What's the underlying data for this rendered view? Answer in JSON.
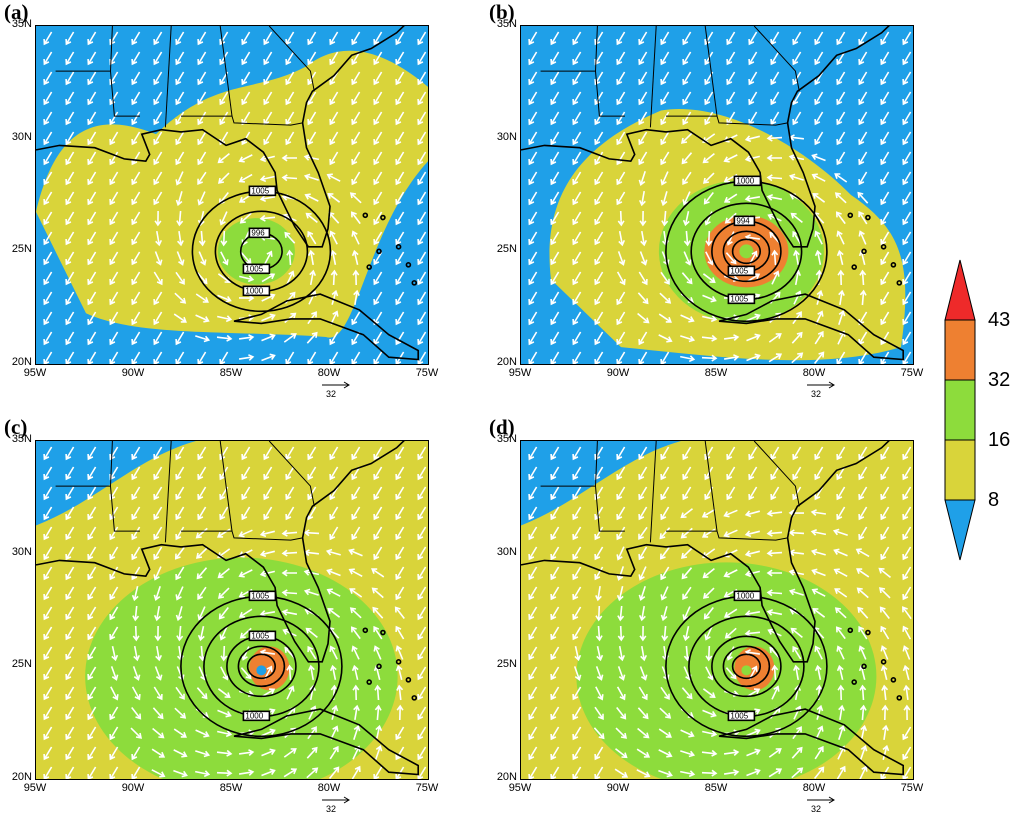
{
  "panels": [
    {
      "id": "a",
      "label": "(a)",
      "intensity": 1
    },
    {
      "id": "b",
      "label": "(b)",
      "intensity": 2
    },
    {
      "id": "c",
      "label": "(c)",
      "intensity": 3
    },
    {
      "id": "d",
      "label": "(d)",
      "intensity": 4
    }
  ],
  "axes": {
    "lat_labels": [
      "35N",
      "30N",
      "25N",
      "20N"
    ],
    "lon_labels": [
      "95W",
      "90W",
      "85W",
      "80W",
      "75W"
    ],
    "lon_range": [
      -95,
      -75
    ],
    "lat_range": [
      20,
      35
    ]
  },
  "reference_vector": {
    "label": "32"
  },
  "colorbar": {
    "levels": [
      "43",
      "32",
      "16",
      "8"
    ],
    "colors": {
      "c8": "#1fa0e8",
      "c16": "#d9d43a",
      "c32": "#8ddc3c",
      "c43": "#ee8031",
      "cmax": "#ee2a2a"
    }
  },
  "contours": {
    "a": [
      "1005",
      "1000",
      "996",
      "1005"
    ],
    "b": [
      "1000",
      "1005",
      "994",
      "1005"
    ],
    "c": [
      "1005",
      "1000",
      "1005"
    ],
    "d": [
      "1000",
      "1005"
    ]
  },
  "colors": {
    "land_line": "#000000",
    "vectors": "#ffffff"
  }
}
